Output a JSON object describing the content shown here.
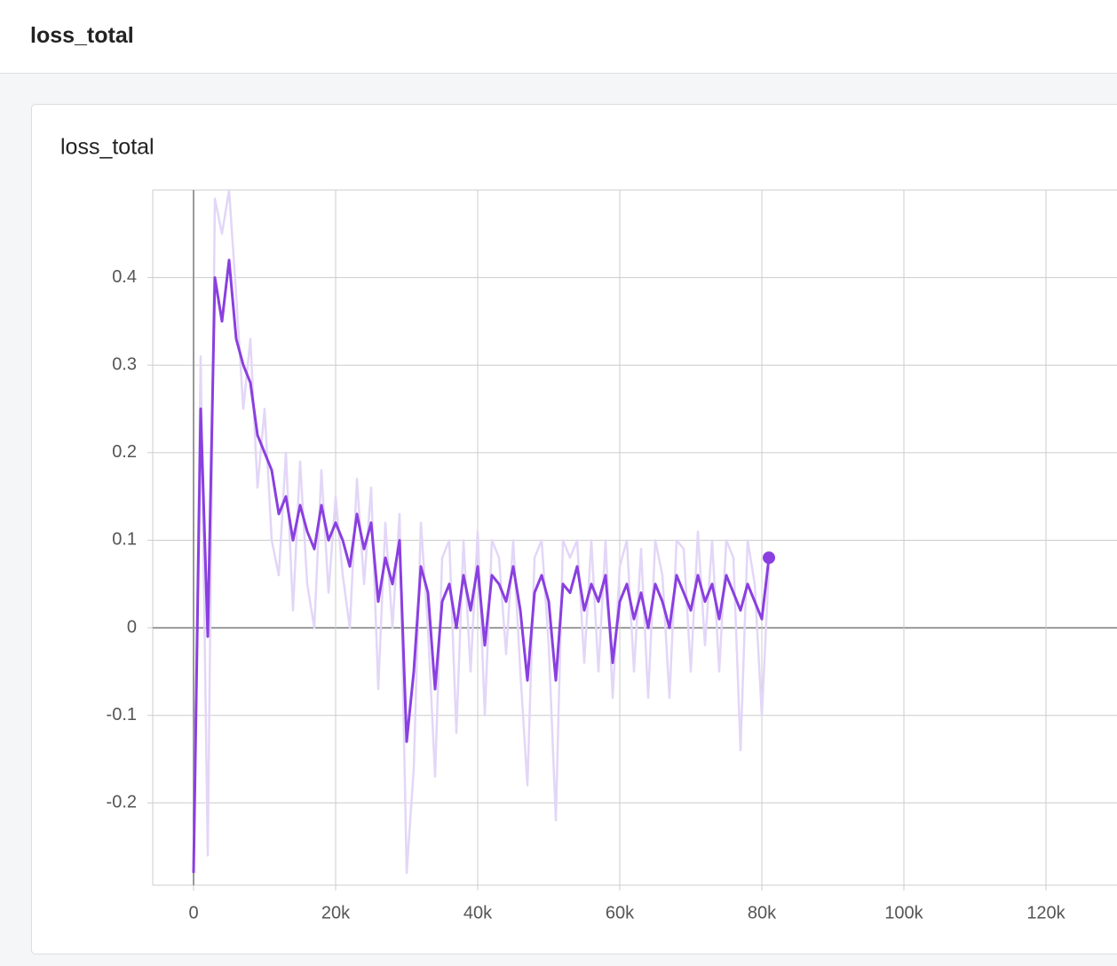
{
  "header": {
    "title": "loss_total"
  },
  "chart_data": {
    "type": "line",
    "title": "loss_total",
    "x": [
      0,
      1000,
      2000,
      3000,
      4000,
      5000,
      6000,
      7000,
      8000,
      9000,
      10000,
      11000,
      12000,
      13000,
      14000,
      15000,
      16000,
      17000,
      18000,
      19000,
      20000,
      21000,
      22000,
      23000,
      24000,
      25000,
      26000,
      27000,
      28000,
      29000,
      30000,
      31000,
      32000,
      33000,
      34000,
      35000,
      36000,
      37000,
      38000,
      39000,
      40000,
      41000,
      42000,
      43000,
      44000,
      45000,
      46000,
      47000,
      48000,
      49000,
      50000,
      51000,
      52000,
      53000,
      54000,
      55000,
      56000,
      57000,
      58000,
      59000,
      60000,
      61000,
      62000,
      63000,
      64000,
      65000,
      66000,
      67000,
      68000,
      69000,
      70000,
      71000,
      72000,
      73000,
      74000,
      75000,
      76000,
      77000,
      78000,
      79000,
      80000,
      81000
    ],
    "series": [
      {
        "color": "#e3d6f7",
        "values": [
          -0.27,
          0.31,
          -0.26,
          0.49,
          0.45,
          0.5,
          0.38,
          0.25,
          0.33,
          0.16,
          0.25,
          0.1,
          0.06,
          0.2,
          0.02,
          0.19,
          0.05,
          0.0,
          0.18,
          0.04,
          0.15,
          0.06,
          0.0,
          0.17,
          0.05,
          0.16,
          -0.07,
          0.12,
          0.0,
          0.13,
          -0.28,
          -0.16,
          0.12,
          0.0,
          -0.17,
          0.08,
          0.1,
          -0.12,
          0.1,
          -0.05,
          0.11,
          -0.1,
          0.1,
          0.08,
          -0.03,
          0.1,
          -0.05,
          -0.18,
          0.08,
          0.1,
          -0.02,
          -0.22,
          0.1,
          0.08,
          0.1,
          -0.04,
          0.1,
          -0.05,
          0.1,
          -0.08,
          0.07,
          0.1,
          -0.05,
          0.09,
          -0.08,
          0.1,
          0.06,
          -0.08,
          0.1,
          0.09,
          -0.05,
          0.11,
          -0.02,
          0.1,
          -0.05,
          0.1,
          0.08,
          -0.14,
          0.1,
          0.05,
          -0.1,
          0.07
        ]
      },
      {
        "color": "#8a3fe0",
        "values": [
          -0.28,
          0.25,
          -0.01,
          0.4,
          0.35,
          0.42,
          0.33,
          0.3,
          0.28,
          0.22,
          0.2,
          0.18,
          0.13,
          0.15,
          0.1,
          0.14,
          0.11,
          0.09,
          0.14,
          0.1,
          0.12,
          0.1,
          0.07,
          0.13,
          0.09,
          0.12,
          0.03,
          0.08,
          0.05,
          0.1,
          -0.13,
          -0.05,
          0.07,
          0.04,
          -0.07,
          0.03,
          0.05,
          0.0,
          0.06,
          0.02,
          0.07,
          -0.02,
          0.06,
          0.05,
          0.03,
          0.07,
          0.02,
          -0.06,
          0.04,
          0.06,
          0.03,
          -0.06,
          0.05,
          0.04,
          0.07,
          0.02,
          0.05,
          0.03,
          0.06,
          -0.04,
          0.03,
          0.05,
          0.01,
          0.04,
          0.0,
          0.05,
          0.03,
          0.0,
          0.06,
          0.04,
          0.02,
          0.06,
          0.03,
          0.05,
          0.01,
          0.06,
          0.04,
          0.02,
          0.05,
          0.03,
          0.01,
          0.08
        ]
      }
    ],
    "xlim": [
      -5750,
      130000
    ],
    "ylim": [
      -0.294,
      0.5
    ],
    "xticks": [
      0,
      {
        "value": 20000,
        "label": "20k"
      },
      {
        "value": 40000,
        "label": "40k"
      },
      {
        "value": 60000,
        "label": "60k"
      },
      {
        "value": 80000,
        "label": "80k"
      },
      {
        "value": 100000,
        "label": "100k"
      },
      {
        "value": 120000,
        "label": "120k"
      }
    ],
    "yticks": [
      -0.2,
      -0.1,
      0,
      0.1,
      0.2,
      0.3,
      0.4
    ],
    "grid": true
  }
}
